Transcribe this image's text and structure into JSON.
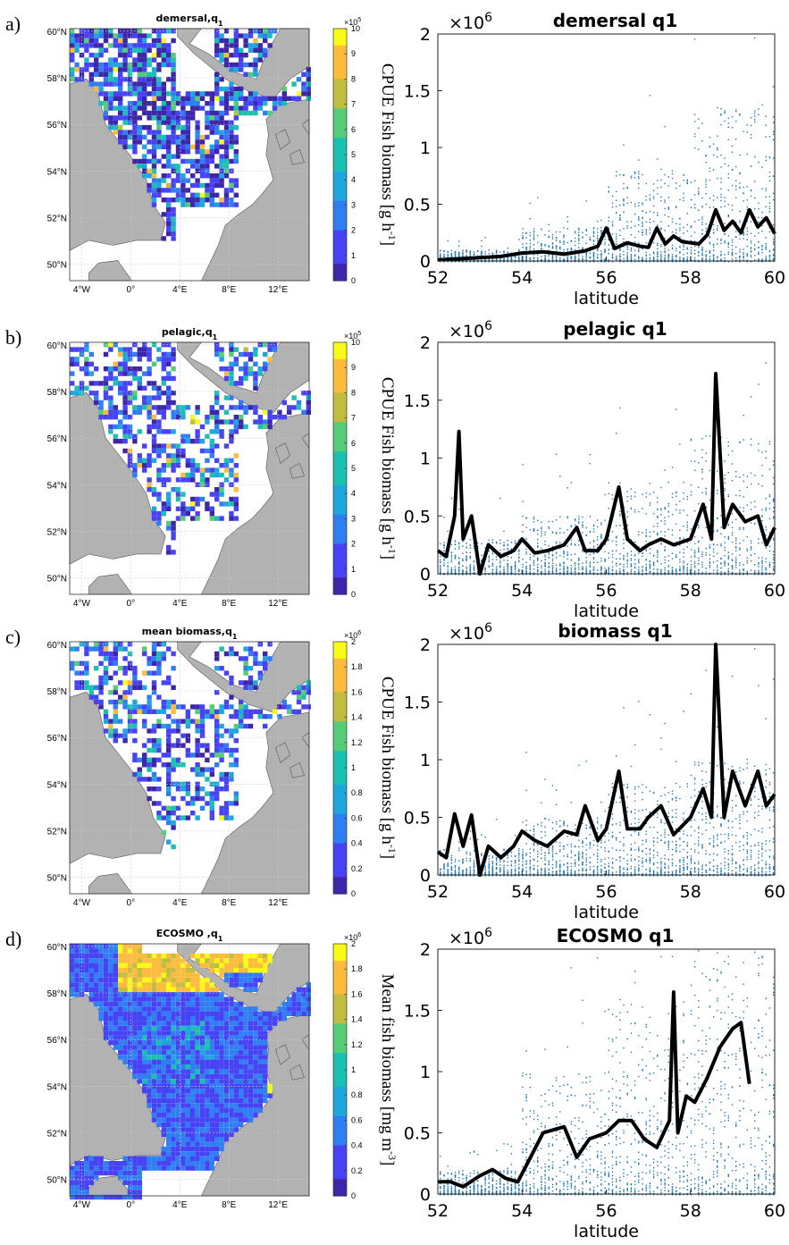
{
  "colors": {
    "land": "#b2b2b2",
    "sea": "#ffffff",
    "scatter": "#1f77b4",
    "line": "#000000",
    "colormap": [
      "#3e26a8",
      "#4743f4",
      "#2f7ff3",
      "#1fa6dc",
      "#1ac1b0",
      "#57cc78",
      "#c0bd40",
      "#fdbc3c",
      "#f9fb15"
    ]
  },
  "map_axes": {
    "x_ticks": [
      "4°W",
      "0°",
      "4°E",
      "8°E",
      "12°E"
    ],
    "y_ticks": [
      "60°N",
      "58°N",
      "56°N",
      "54°N",
      "52°N",
      "50°N"
    ]
  },
  "panels": [
    {
      "letter": "a)",
      "map_title": "demersal,q",
      "map_title_sub": "1",
      "map_density": 0.75,
      "map_bias": 0.1,
      "colorbar": {
        "exponent": "×10",
        "exponent_power": "5",
        "ticks": [
          "10",
          "9",
          "8",
          "7",
          "6",
          "5",
          "4",
          "3",
          "2",
          "1",
          "0"
        ],
        "label": "CPUE Fish biomass [g h",
        "label_sup": "-1",
        "label_end": "]"
      }
    },
    {
      "letter": "b)",
      "map_title": "pelagic,q",
      "map_title_sub": "1",
      "map_density": 0.55,
      "map_bias": 0.22,
      "colorbar": {
        "exponent": "×10",
        "exponent_power": "5",
        "ticks": [
          "10",
          "9",
          "8",
          "7",
          "6",
          "5",
          "4",
          "3",
          "2",
          "1",
          "0"
        ],
        "label": "CPUE Fish biomass [g h",
        "label_sup": "-1",
        "label_end": "]"
      }
    },
    {
      "letter": "c)",
      "map_title": "mean biomass,q",
      "map_title_sub": "1",
      "map_density": 0.5,
      "map_bias": 0.22,
      "colorbar": {
        "exponent": "×10",
        "exponent_power": "6",
        "ticks": [
          "2",
          "1.8",
          "1.6",
          "1.4",
          "1.2",
          "1",
          "0.8",
          "0.6",
          "0.4",
          "0.2",
          "0"
        ],
        "label": "CPUE Fish biomass [g h",
        "label_sup": "-1",
        "label_end": "]"
      }
    },
    {
      "letter": "d)",
      "map_title": "ECOSMO ,q",
      "map_title_sub": "1",
      "map_density": 1.0,
      "map_bias": 0.3,
      "colorbar": {
        "exponent": "×10",
        "exponent_power": "6",
        "ticks": [
          "2",
          "1.8",
          "1.6",
          "1.4",
          "1.2",
          "1",
          "0.8",
          "0.6",
          "0.4",
          "0.2",
          "0"
        ],
        "label": "Mean fish biomass [mg m",
        "label_sup": "-3",
        "label_end": "]"
      }
    }
  ],
  "chart_data": [
    {
      "type": "scatter",
      "title": "demersal q1",
      "xlabel": "latitude",
      "ylabel": "",
      "y_exponent": "×10",
      "y_exponent_power": "6",
      "xlim": [
        52,
        60
      ],
      "ylim": [
        0,
        2000000
      ],
      "x_ticks": [
        "52",
        "54",
        "56",
        "58",
        "60"
      ],
      "y_ticks": [
        "0",
        "0.5",
        "1",
        "1.5",
        "2"
      ],
      "scatter_spread": [
        0.05,
        0.15,
        0.4,
        0.7
      ],
      "line": {
        "x": [
          52.0,
          52.5,
          53.0,
          53.5,
          54.0,
          54.5,
          55.0,
          55.5,
          55.8,
          56.0,
          56.2,
          56.5,
          56.8,
          57.0,
          57.2,
          57.4,
          57.6,
          57.8,
          58.0,
          58.2,
          58.4,
          58.6,
          58.8,
          59.0,
          59.2,
          59.4,
          59.6,
          59.8,
          60.0
        ],
        "y": [
          10000,
          20000,
          30000,
          40000,
          70000,
          80000,
          60000,
          90000,
          130000,
          290000,
          110000,
          160000,
          130000,
          120000,
          290000,
          150000,
          220000,
          170000,
          160000,
          150000,
          230000,
          450000,
          270000,
          350000,
          250000,
          450000,
          300000,
          380000,
          240000
        ]
      }
    },
    {
      "type": "scatter",
      "title": "pelagic q1",
      "xlabel": "latitude",
      "ylabel": "",
      "y_exponent": "×10",
      "y_exponent_power": "6",
      "xlim": [
        52,
        60
      ],
      "ylim": [
        0,
        2000000
      ],
      "x_ticks": [
        "52",
        "54",
        "56",
        "58",
        "60"
      ],
      "y_ticks": [
        "0",
        "0.5",
        "1",
        "1.5",
        "2"
      ],
      "scatter_spread": [
        0.15,
        0.25,
        0.4,
        0.6
      ],
      "line": {
        "x": [
          52.0,
          52.2,
          52.4,
          52.5,
          52.6,
          52.8,
          53.0,
          53.2,
          53.5,
          53.8,
          54.0,
          54.3,
          54.6,
          55.0,
          55.3,
          55.5,
          55.8,
          56.0,
          56.3,
          56.5,
          56.8,
          57.0,
          57.3,
          57.6,
          58.0,
          58.3,
          58.5,
          58.6,
          58.8,
          59.0,
          59.3,
          59.6,
          59.8,
          60.0
        ],
        "y": [
          200000,
          150000,
          500000,
          1230000,
          300000,
          500000,
          0,
          250000,
          150000,
          200000,
          300000,
          180000,
          200000,
          250000,
          400000,
          200000,
          200000,
          300000,
          750000,
          300000,
          200000,
          250000,
          300000,
          250000,
          300000,
          600000,
          300000,
          1730000,
          400000,
          600000,
          450000,
          500000,
          250000,
          400000
        ]
      }
    },
    {
      "type": "scatter",
      "title": "biomass q1",
      "xlabel": "latitude",
      "ylabel": "",
      "y_exponent": "×10",
      "y_exponent_power": "6",
      "xlim": [
        52,
        60
      ],
      "ylim": [
        0,
        2000000
      ],
      "x_ticks": [
        "52",
        "54",
        "56",
        "58",
        "60"
      ],
      "y_ticks": [
        "0",
        "0.5",
        "1",
        "1.5",
        "2"
      ],
      "scatter_spread": [
        0.12,
        0.25,
        0.4,
        0.5
      ],
      "line": {
        "x": [
          52.0,
          52.2,
          52.4,
          52.6,
          52.8,
          53.0,
          53.2,
          53.5,
          53.8,
          54.0,
          54.3,
          54.6,
          55.0,
          55.3,
          55.5,
          55.8,
          56.0,
          56.3,
          56.5,
          56.8,
          57.0,
          57.3,
          57.6,
          58.0,
          58.3,
          58.5,
          58.6,
          58.8,
          59.0,
          59.3,
          59.6,
          59.8,
          60.0
        ],
        "y": [
          200000,
          150000,
          530000,
          250000,
          520000,
          0,
          250000,
          150000,
          250000,
          380000,
          300000,
          250000,
          380000,
          350000,
          600000,
          300000,
          400000,
          900000,
          400000,
          400000,
          500000,
          600000,
          350000,
          500000,
          750000,
          500000,
          2000000,
          500000,
          900000,
          600000,
          900000,
          600000,
          700000
        ]
      }
    },
    {
      "type": "scatter",
      "title": "ECOSMO q1",
      "xlabel": "latitude",
      "ylabel": "",
      "y_exponent": "×10",
      "y_exponent_power": "6",
      "xlim": [
        52,
        60
      ],
      "ylim": [
        0,
        2000000
      ],
      "x_ticks": [
        "52",
        "54",
        "56",
        "58",
        "60"
      ],
      "y_ticks": [
        "0",
        "0.5",
        "1",
        "1.5",
        "2"
      ],
      "scatter_spread": [
        0.1,
        0.5,
        0.8,
        1.0
      ],
      "line": {
        "x": [
          52.0,
          52.3,
          52.6,
          53.0,
          53.3,
          53.6,
          53.9,
          54.2,
          54.5,
          54.8,
          55.0,
          55.3,
          55.6,
          56.0,
          56.3,
          56.6,
          56.9,
          57.2,
          57.5,
          57.6,
          57.7,
          57.9,
          58.1,
          58.4,
          58.7,
          59.0,
          59.2,
          59.4
        ],
        "y": [
          100000,
          100000,
          60000,
          150000,
          200000,
          130000,
          100000,
          300000,
          500000,
          530000,
          550000,
          300000,
          450000,
          500000,
          600000,
          600000,
          450000,
          380000,
          600000,
          1650000,
          500000,
          800000,
          750000,
          950000,
          1200000,
          1350000,
          1400000,
          900000
        ]
      }
    }
  ]
}
